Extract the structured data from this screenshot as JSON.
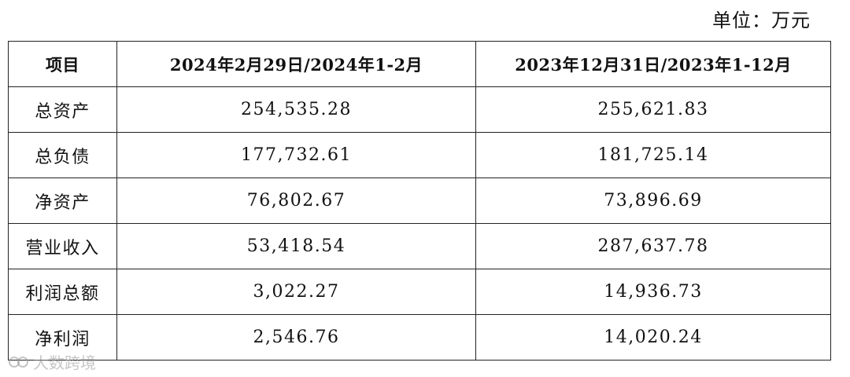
{
  "unit": "单位：万元",
  "table": {
    "header": [
      "项目",
      "2024年2月29日/2024年1-2月",
      "2023年12月31日/2023年1-12月"
    ],
    "rows": [
      [
        "总资产",
        "254,535.28",
        "255,621.83"
      ],
      [
        "总负债",
        "177,732.61",
        "181,725.14"
      ],
      [
        "净资产",
        "76,802.67",
        "73,896.69"
      ],
      [
        "营业收入",
        "53,418.54",
        "287,637.78"
      ],
      [
        "利润总额",
        "3,022.27",
        "14,936.73"
      ],
      [
        "净利润",
        "2,546.76",
        "14,020.24"
      ]
    ]
  },
  "watermark": "大数跨境"
}
